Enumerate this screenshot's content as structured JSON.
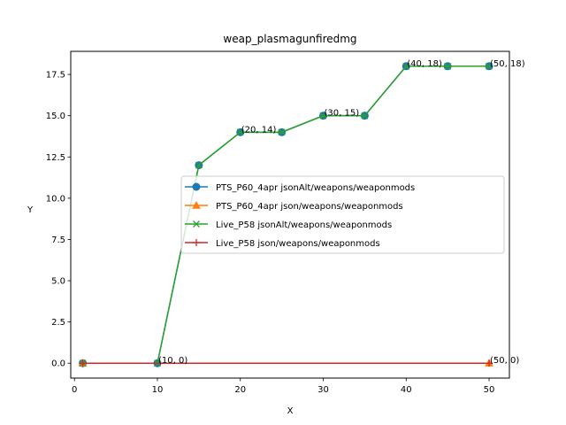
{
  "chart_data": {
    "type": "line",
    "title": "weap_plasmagunfiredmg",
    "xlabel": "X",
    "ylabel": "Y",
    "xlim": [
      -0.45,
      52.45
    ],
    "ylim": [
      -0.9,
      18.9
    ],
    "xticks": [
      0,
      10,
      20,
      30,
      40,
      50
    ],
    "xtick_labels": [
      "0",
      "10",
      "20",
      "30",
      "40",
      "50"
    ],
    "yticks": [
      0.0,
      2.5,
      5.0,
      7.5,
      10.0,
      12.5,
      15.0,
      17.5
    ],
    "ytick_labels": [
      "0.0",
      "2.5",
      "5.0",
      "7.5",
      "10.0",
      "12.5",
      "15.0",
      "17.5"
    ],
    "grid": false,
    "legend_position": "center-right",
    "series": [
      {
        "name": "PTS_P60_4apr jsonAlt/weapons/weaponmods",
        "color": "#1f77b4",
        "marker": "circle",
        "x": [
          1,
          10,
          15,
          20,
          25,
          30,
          35,
          40,
          45,
          50
        ],
        "y": [
          0,
          0,
          12,
          14,
          14,
          15,
          15,
          18,
          18,
          18
        ]
      },
      {
        "name": "PTS_P60_4apr json/weapons/weaponmods",
        "color": "#ff7f0e",
        "marker": "triangle",
        "x": [
          1,
          50
        ],
        "y": [
          0,
          0
        ]
      },
      {
        "name": "Live_P58 jsonAlt/weapons/weaponmods",
        "color": "#2ca02c",
        "marker": "x",
        "x": [
          1,
          10,
          15,
          20,
          25,
          30,
          35,
          40,
          45,
          50
        ],
        "y": [
          0,
          0,
          12,
          14,
          14,
          15,
          15,
          18,
          18,
          18
        ]
      },
      {
        "name": "Live_P58 json/weapons/weaponmods",
        "color": "#d62728",
        "marker": "plus",
        "x": [
          1,
          50
        ],
        "y": [
          0,
          0
        ]
      }
    ],
    "annotations": [
      {
        "text": "(10, 0)",
        "x": 10,
        "y": 0
      },
      {
        "text": "(20, 14)",
        "x": 20,
        "y": 14
      },
      {
        "text": "(30, 15)",
        "x": 30,
        "y": 15
      },
      {
        "text": "(40, 18)",
        "x": 40,
        "y": 18
      },
      {
        "text": "(50, 18)",
        "x": 50,
        "y": 18
      },
      {
        "text": "(50, 0)",
        "x": 50,
        "y": 0
      }
    ]
  }
}
